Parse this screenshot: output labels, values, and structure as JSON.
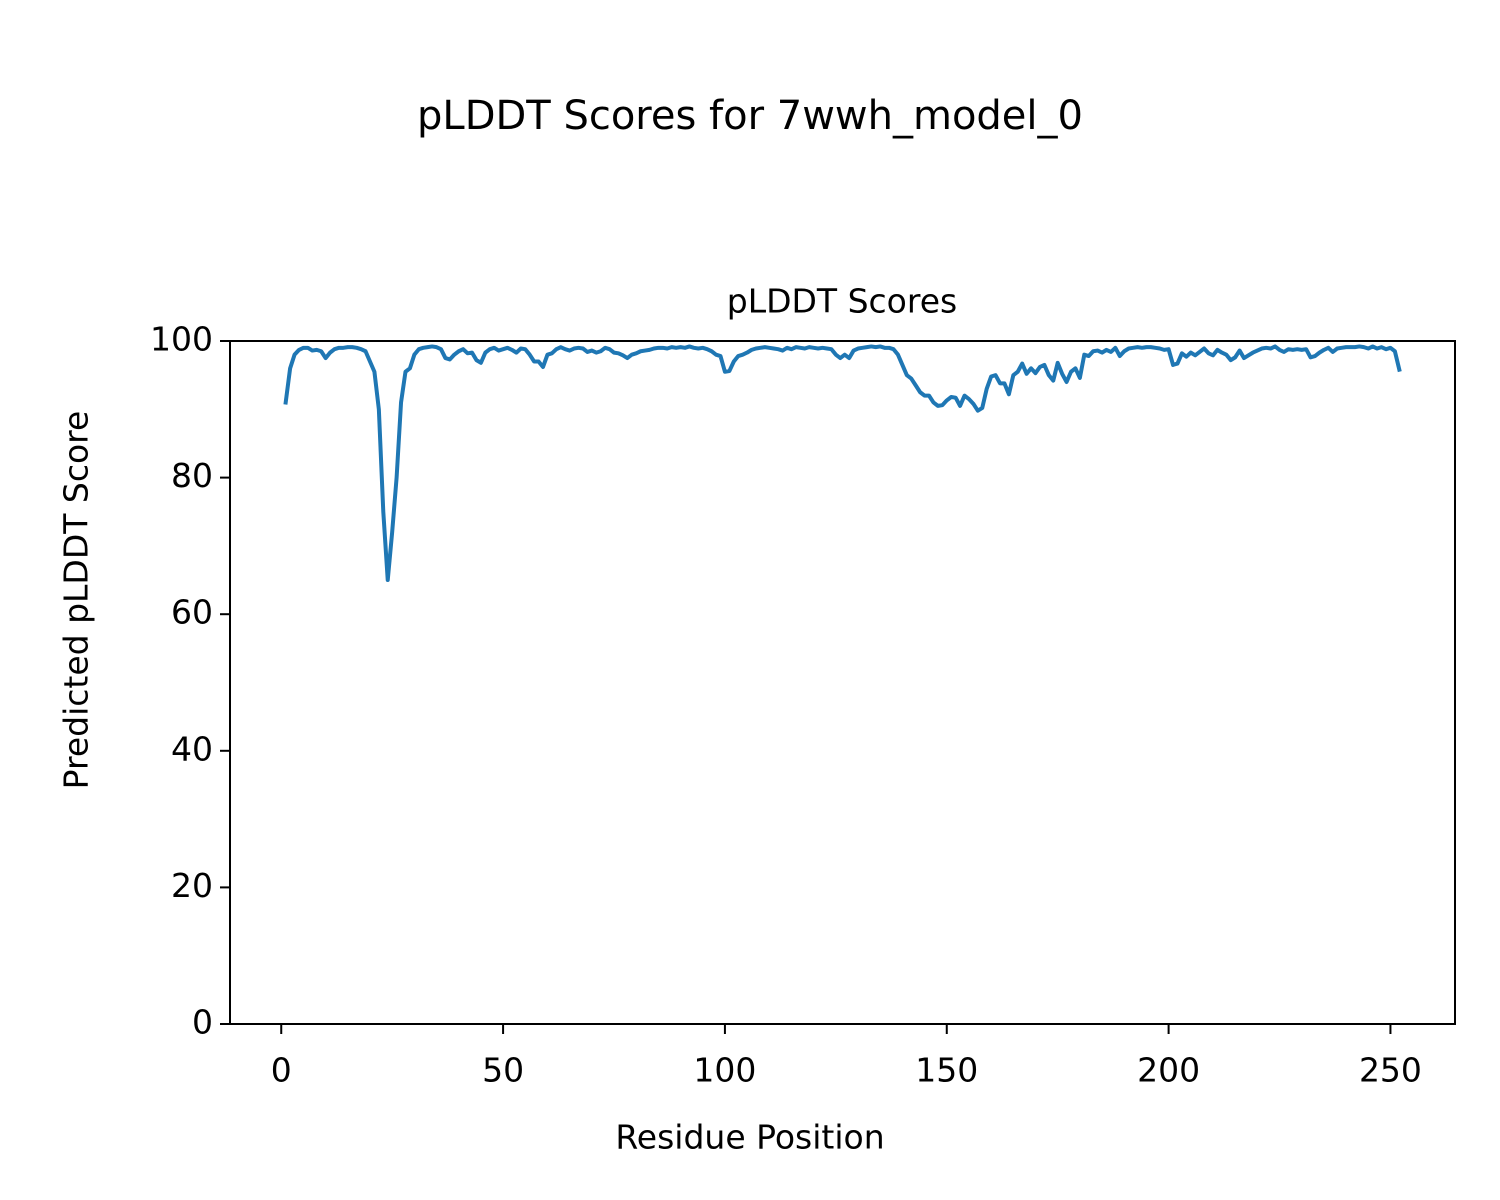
{
  "chart_data": {
    "type": "line",
    "title": "pLDDT Scores for 7wwh_model_0",
    "subtitle": "pLDDT Scores",
    "x_label": "Residue Position",
    "y_label": "Predicted pLDDT Score",
    "color": "#1f77b4",
    "x": [
      1,
      2,
      3,
      4,
      5,
      6,
      7,
      8,
      9,
      10,
      11,
      12,
      13,
      14,
      15,
      16,
      17,
      18,
      19,
      20,
      21,
      22,
      23,
      24,
      25,
      26,
      27,
      28,
      29,
      30,
      31,
      32,
      33,
      34,
      35,
      36,
      37,
      38,
      39,
      40,
      41,
      42,
      43,
      44,
      45,
      46,
      47,
      48,
      49,
      50,
      51,
      52,
      53,
      54,
      55,
      56,
      57,
      58,
      59,
      60,
      61,
      62,
      63,
      64,
      65,
      66,
      67,
      68,
      69,
      70,
      71,
      72,
      73,
      74,
      75,
      76,
      77,
      78,
      79,
      80,
      81,
      82,
      83,
      84,
      85,
      86,
      87,
      88,
      89,
      90,
      91,
      92,
      93,
      94,
      95,
      96,
      97,
      98,
      99,
      100,
      101,
      102,
      103,
      104,
      105,
      106,
      107,
      108,
      109,
      110,
      111,
      112,
      113,
      114,
      115,
      116,
      117,
      118,
      119,
      120,
      121,
      122,
      123,
      124,
      125,
      126,
      127,
      128,
      129,
      130,
      131,
      132,
      133,
      134,
      135,
      136,
      137,
      138,
      139,
      140,
      141,
      142,
      143,
      144,
      145,
      146,
      147,
      148,
      149,
      150,
      151,
      152,
      153,
      154,
      155,
      156,
      157,
      158,
      159,
      160,
      161,
      162,
      163,
      164,
      165,
      166,
      167,
      168,
      169,
      170,
      171,
      172,
      173,
      174,
      175,
      176,
      177,
      178,
      179,
      180,
      181,
      182,
      183,
      184,
      185,
      186,
      187,
      188,
      189,
      190,
      191,
      192,
      193,
      194,
      195,
      196,
      197,
      198,
      199,
      200,
      201,
      202,
      203,
      204,
      205,
      206,
      207,
      208,
      209,
      210,
      211,
      212,
      213,
      214,
      215,
      216,
      217,
      218,
      219,
      220,
      221,
      222,
      223,
      224,
      225,
      226,
      227,
      228,
      229,
      230,
      231,
      232,
      233,
      234,
      235,
      236,
      237,
      238,
      239,
      240,
      241,
      242,
      243,
      244,
      245,
      246,
      247,
      248,
      249,
      250,
      251,
      252
    ],
    "values": [
      91,
      96,
      98,
      98.7,
      99,
      99,
      98.6,
      98.7,
      98.5,
      97.5,
      98.3,
      98.8,
      99,
      99,
      99.1,
      99.1,
      99,
      98.8,
      98.5,
      97,
      95.5,
      90,
      75,
      65,
      72,
      80,
      91,
      95.5,
      96,
      98,
      98.8,
      99,
      99.1,
      99.2,
      99.1,
      98.8,
      97.5,
      97.3,
      98,
      98.5,
      98.8,
      98.2,
      98.3,
      97.2,
      96.8,
      98.3,
      98.8,
      99,
      98.6,
      98.8,
      99,
      98.7,
      98.3,
      98.9,
      98.8,
      98,
      97,
      97,
      96.2,
      98,
      98.2,
      98.8,
      99.1,
      98.8,
      98.6,
      98.9,
      99,
      98.9,
      98.4,
      98.6,
      98.3,
      98.5,
      99,
      98.8,
      98.3,
      98.2,
      97.9,
      97.5,
      98,
      98.2,
      98.5,
      98.6,
      98.7,
      98.9,
      99,
      99,
      98.9,
      99.1,
      99,
      99.1,
      99,
      99.2,
      99,
      98.9,
      99,
      98.8,
      98.5,
      98,
      97.8,
      95.5,
      95.6,
      97,
      97.8,
      98,
      98.3,
      98.7,
      98.9,
      99,
      99.1,
      99,
      98.9,
      98.8,
      98.6,
      99,
      98.8,
      99.1,
      99,
      98.9,
      99.1,
      99,
      98.9,
      99,
      98.9,
      98.8,
      98,
      97.5,
      98,
      97.5,
      98.6,
      98.9,
      99,
      99.1,
      99.2,
      99.1,
      99.2,
      99,
      99,
      98.8,
      98,
      96.5,
      95,
      94.5,
      93.5,
      92.5,
      92,
      92,
      91,
      90.5,
      90.6,
      91.3,
      91.8,
      91.7,
      90.5,
      92,
      91.5,
      90.8,
      89.8,
      90.2,
      93,
      94.8,
      95,
      93.8,
      93.8,
      92.2,
      95,
      95.5,
      96.7,
      95.2,
      96,
      95.3,
      96.2,
      96.5,
      95,
      94.2,
      96.8,
      95.2,
      94,
      95.5,
      96,
      94.6,
      98,
      97.8,
      98.5,
      98.6,
      98.3,
      98.7,
      98.4,
      99,
      97.8,
      98.5,
      98.9,
      99,
      99.1,
      99,
      99.1,
      99.1,
      99,
      98.9,
      98.7,
      98.8,
      96.5,
      96.7,
      98.2,
      97.7,
      98.3,
      97.9,
      98.4,
      98.9,
      98.2,
      97.9,
      98.7,
      98.3,
      98,
      97.2,
      97.6,
      98.6,
      97.5,
      97.9,
      98.3,
      98.6,
      98.9,
      99,
      98.9,
      99.2,
      98.7,
      98.4,
      98.8,
      98.7,
      98.8,
      98.7,
      98.8,
      97.6,
      97.8,
      98.3,
      98.7,
      99,
      98.4,
      98.9,
      99,
      99.1,
      99.1,
      99.1,
      99.2,
      99.1,
      98.9,
      99.2,
      98.9,
      99.1,
      98.8,
      99,
      98.5,
      95.8
    ],
    "xlim": [
      -11.55,
      264.55
    ],
    "xticks": [
      0,
      50,
      100,
      150,
      200,
      250
    ],
    "ylim": [
      0,
      100
    ],
    "yticks": [
      0,
      20,
      40,
      60,
      80,
      100
    ],
    "grid": false
  }
}
